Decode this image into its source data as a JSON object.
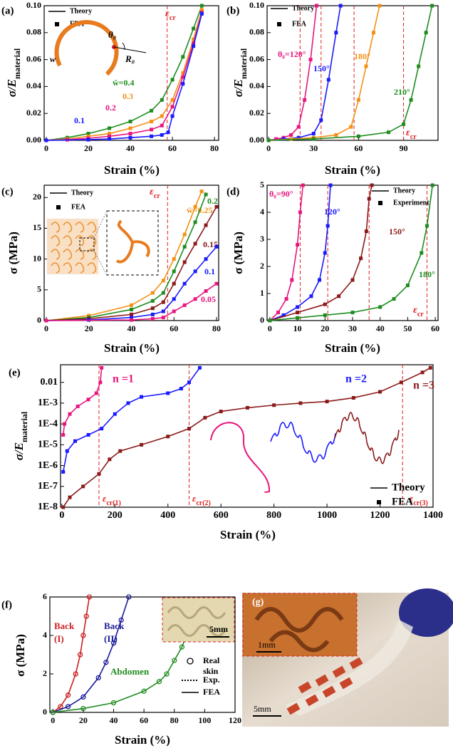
{
  "chart_data": [
    {
      "type": "line",
      "panel": "(a)",
      "x_label": "Strain (%)",
      "y_label": {
        "main": "σ/E",
        "sub": "material"
      },
      "xlim": [
        -1,
        82
      ],
      "ylim": [
        0,
        0.1
      ],
      "xticks": [
        0,
        20,
        40,
        60,
        80
      ],
      "yticks": [
        {
          "value": 0,
          "label": "0.00"
        },
        {
          "value": 0.02,
          "label": "0.02"
        },
        {
          "value": 0.04,
          "label": "0.04"
        },
        {
          "value": 0.06,
          "label": "0.06"
        },
        {
          "value": 0.08,
          "label": "0.08"
        },
        {
          "value": 0.1,
          "label": "0.10"
        }
      ],
      "marker": "square",
      "legend": [
        {
          "label": "Theory",
          "style": "line"
        },
        {
          "label": "FEA",
          "style": "square"
        }
      ],
      "critical_x": [
        57.5
      ],
      "critical_labels": [
        {
          "symbol": "ε",
          "sub": "cr"
        }
      ],
      "inset_labels": [
        "w",
        "θ₀",
        "R₀"
      ],
      "series": [
        {
          "name": "w̄=0.4",
          "color": "#1e8c1e",
          "x": [
            0,
            10,
            20,
            30,
            40,
            50,
            55,
            60,
            65,
            70,
            74
          ],
          "values": [
            0,
            0.002,
            0.005,
            0.009,
            0.014,
            0.022,
            0.03,
            0.045,
            0.062,
            0.083,
            0.1
          ]
        },
        {
          "name": "0.3",
          "color": "#f39016",
          "x": [
            0,
            10,
            20,
            30,
            40,
            50,
            55,
            60,
            65,
            70,
            74
          ],
          "values": [
            0,
            0.001,
            0.003,
            0.005,
            0.009,
            0.014,
            0.018,
            0.03,
            0.05,
            0.075,
            0.097
          ]
        },
        {
          "name": "0.2",
          "color": "#e8167f",
          "x": [
            0,
            10,
            20,
            30,
            40,
            50,
            55,
            60,
            65,
            70,
            74
          ],
          "values": [
            0,
            0.0005,
            0.0015,
            0.003,
            0.005,
            0.008,
            0.011,
            0.025,
            0.047,
            0.072,
            0.095
          ]
        },
        {
          "name": "0.1",
          "color": "#1a1aff",
          "x": [
            0,
            20,
            30,
            40,
            50,
            55,
            58,
            60,
            65,
            70,
            74
          ],
          "values": [
            0,
            0.0005,
            0.001,
            0.002,
            0.003,
            0.004,
            0.006,
            0.018,
            0.042,
            0.07,
            0.094
          ]
        }
      ]
    },
    {
      "type": "line",
      "panel": "(b)",
      "x_label": "Strain (%)",
      "y_label": {
        "main": "σ/E",
        "sub": "material"
      },
      "xlim": [
        -1,
        113
      ],
      "ylim": [
        0,
        0.1
      ],
      "xticks": [
        0,
        30,
        60,
        90
      ],
      "yticks": [
        {
          "value": 0,
          "label": "0.00"
        },
        {
          "value": 0.02,
          "label": "0.02"
        },
        {
          "value": 0.04,
          "label": "0.04"
        },
        {
          "value": 0.06,
          "label": "0.06"
        },
        {
          "value": 0.08,
          "label": "0.08"
        },
        {
          "value": 0.1,
          "label": "0.10"
        }
      ],
      "marker": "square",
      "legend": [
        {
          "label": "Theory",
          "style": "line"
        },
        {
          "label": "FEA",
          "style": "square"
        }
      ],
      "critical_x": [
        21,
        35,
        57,
        90
      ],
      "critical_labels": [
        {
          "symbol": "ε",
          "sub": "cr"
        }
      ],
      "series": [
        {
          "name": "θ₀=120°",
          "color": "#e8167f",
          "x": [
            0,
            5,
            10,
            15,
            20,
            24,
            28,
            32
          ],
          "values": [
            0,
            0.001,
            0.002,
            0.004,
            0.01,
            0.03,
            0.06,
            0.1
          ]
        },
        {
          "name": "150°",
          "color": "#1a1aff",
          "x": [
            0,
            10,
            20,
            30,
            35,
            40,
            45,
            48
          ],
          "values": [
            0,
            0.001,
            0.002,
            0.005,
            0.015,
            0.045,
            0.08,
            0.1
          ]
        },
        {
          "name": "180°",
          "color": "#f39016",
          "x": [
            0,
            15,
            30,
            45,
            55,
            60,
            65,
            70,
            74
          ],
          "values": [
            0,
            0.001,
            0.002,
            0.004,
            0.01,
            0.03,
            0.055,
            0.08,
            0.1
          ]
        },
        {
          "name": "210°",
          "color": "#1e8c1e",
          "x": [
            0,
            30,
            60,
            80,
            90,
            95,
            100,
            105,
            109
          ],
          "values": [
            0,
            0.001,
            0.003,
            0.006,
            0.012,
            0.03,
            0.055,
            0.08,
            0.1
          ]
        }
      ]
    },
    {
      "type": "line",
      "panel": "(c)",
      "x_label": "Strain (%)",
      "y_label": "σ (MPa)",
      "xlim": [
        -1,
        81
      ],
      "ylim": [
        0,
        22
      ],
      "xticks": [
        0,
        20,
        40,
        60,
        80
      ],
      "yticks": [
        0,
        5,
        10,
        15,
        20
      ],
      "marker": "square",
      "legend": [
        {
          "label": "Theory",
          "style": "line"
        },
        {
          "label": "FEA",
          "style": "square"
        }
      ],
      "critical_x": [
        57
      ],
      "critical_labels": [
        {
          "symbol": "ε",
          "sub": "cr"
        }
      ],
      "series": [
        {
          "name": "w̄=0.25",
          "color": "#f39016",
          "x": [
            0,
            20,
            40,
            50,
            55,
            60,
            65,
            70,
            73
          ],
          "values": [
            0,
            0.8,
            2.5,
            4.5,
            6.5,
            10,
            14,
            18.5,
            21
          ]
        },
        {
          "name": "0.2",
          "color": "#1e8c1e",
          "x": [
            0,
            20,
            40,
            50,
            55,
            60,
            65,
            70,
            75
          ],
          "values": [
            0,
            0.5,
            1.8,
            3.2,
            4.5,
            8,
            12,
            16,
            20.5
          ]
        },
        {
          "name": "0.15",
          "color": "#8b1a1a",
          "x": [
            0,
            20,
            40,
            50,
            55,
            60,
            65,
            70,
            75,
            80
          ],
          "values": [
            0,
            0.3,
            1,
            2,
            3,
            6,
            9.5,
            12.5,
            15.5,
            18.5
          ]
        },
        {
          "name": "0.1",
          "color": "#1a1aff",
          "x": [
            0,
            20,
            40,
            50,
            55,
            60,
            65,
            70,
            75,
            80
          ],
          "values": [
            0,
            0.1,
            0.5,
            1,
            1.5,
            3.5,
            6,
            8,
            10,
            12
          ]
        },
        {
          "name": "0.05",
          "color": "#e8167f",
          "x": [
            0,
            40,
            50,
            55,
            60,
            65,
            70,
            75,
            80
          ],
          "values": [
            0,
            0.1,
            0.3,
            0.5,
            1.5,
            2.5,
            3.5,
            4.8,
            6
          ]
        }
      ]
    },
    {
      "type": "line",
      "panel": "(d)",
      "x_label": "Strain (%)",
      "y_label": "σ (MPa)",
      "xlim": [
        -1,
        61
      ],
      "ylim": [
        0,
        5
      ],
      "xticks": [
        0,
        10,
        20,
        30,
        40,
        50,
        60
      ],
      "yticks": [
        0,
        1,
        2,
        3,
        4,
        5
      ],
      "marker": "square",
      "legend": [
        {
          "label": "Theory",
          "style": "line"
        },
        {
          "label": "Experiment",
          "style": "square"
        }
      ],
      "critical_x": [
        11,
        21,
        36,
        57
      ],
      "critical_labels": [
        {
          "symbol": "ε",
          "sub": "cr"
        }
      ],
      "series": [
        {
          "name": "θ₀=90°",
          "color": "#e8167f",
          "x": [
            0,
            3,
            6,
            8,
            10,
            11,
            12
          ],
          "values": [
            0,
            0.3,
            0.8,
            1.5,
            2.8,
            4,
            5
          ]
        },
        {
          "name": "120°",
          "color": "#1a1aff",
          "x": [
            0,
            5,
            10,
            15,
            18,
            20,
            21,
            22
          ],
          "values": [
            0,
            0.2,
            0.5,
            0.9,
            1.5,
            2.5,
            3.5,
            5
          ]
        },
        {
          "name": "150°",
          "color": "#8b1a1a",
          "x": [
            0,
            10,
            20,
            25,
            30,
            33,
            35,
            36,
            37
          ],
          "values": [
            0,
            0.3,
            0.6,
            0.9,
            1.5,
            2.3,
            3.3,
            4.5,
            5
          ]
        },
        {
          "name": "180°",
          "color": "#1e8c1e",
          "x": [
            0,
            10,
            20,
            30,
            40,
            45,
            50,
            55,
            57,
            59
          ],
          "values": [
            0,
            0.1,
            0.2,
            0.3,
            0.5,
            0.8,
            1.3,
            2.5,
            3.5,
            5
          ]
        }
      ]
    },
    {
      "type": "line",
      "panel": "(e)",
      "x_label": "Strain (%)",
      "y_label": {
        "main": "σ/E",
        "sub": "material"
      },
      "xlim": [
        -5,
        1400
      ],
      "ylim": [
        1e-08,
        0.07
      ],
      "log_y": true,
      "xticks": [
        0,
        200,
        400,
        600,
        800,
        1000,
        1200,
        1400
      ],
      "yticks": [
        {
          "value": 1e-08,
          "label": "1E-8"
        },
        {
          "value": 1e-07,
          "label": "1E-7"
        },
        {
          "value": 1e-06,
          "label": "1E-6"
        },
        {
          "value": 1e-05,
          "label": "1E-5"
        },
        {
          "value": 0.0001,
          "label": "1E-4"
        },
        {
          "value": 0.001,
          "label": "1E-3"
        },
        0.01
      ],
      "marker": "square",
      "legend": [
        {
          "label": "Theory",
          "style": "line"
        },
        {
          "label": "FEA",
          "style": "square"
        }
      ],
      "critical_x": [
        140,
        480,
        1285
      ],
      "critical_labels": [
        {
          "symbol": "ε",
          "sub": "cr(1)"
        },
        {
          "symbol": "ε",
          "sub": "cr(2)"
        },
        {
          "symbol": "ε",
          "sub": "cr(3)"
        }
      ],
      "series": [
        {
          "name": "n =1",
          "color": "#e8167f",
          "x": [
            5,
            10,
            30,
            60,
            100,
            130,
            145,
            150
          ],
          "values": [
            3e-05,
            0.0001,
            0.0003,
            0.0007,
            0.0015,
            0.003,
            0.01,
            0.05
          ]
        },
        {
          "name": "n =2",
          "color": "#1a1aff",
          "x": [
            5,
            20,
            50,
            100,
            150,
            200,
            250,
            300,
            400,
            450,
            480,
            520
          ],
          "values": [
            5e-07,
            5e-06,
            1.5e-05,
            3e-05,
            6e-05,
            0.0003,
            0.001,
            0.002,
            0.003,
            0.005,
            0.01,
            0.05
          ]
        },
        {
          "name": "n =3",
          "color": "#8b1a1a",
          "x": [
            5,
            30,
            80,
            140,
            180,
            220,
            300,
            400,
            480,
            540,
            600,
            700,
            800,
            900,
            1000,
            1100,
            1200,
            1280,
            1360,
            1390
          ],
          "values": [
            1e-08,
            3e-08,
            1e-07,
            4e-07,
            2e-06,
            5e-06,
            1e-05,
            2.5e-05,
            6e-05,
            0.0002,
            0.0004,
            0.0006,
            0.0008,
            0.001,
            0.0012,
            0.0018,
            0.0035,
            0.01,
            0.03,
            0.05
          ]
        }
      ]
    },
    {
      "type": "line",
      "panel": "(f)",
      "x_label": "Strain (%)",
      "y_label": "σ (MPa)",
      "xlim": [
        -2,
        120
      ],
      "ylim": [
        0,
        6
      ],
      "xticks": [
        0,
        20,
        40,
        60,
        80,
        100,
        120
      ],
      "yticks": [
        0,
        2,
        4,
        6
      ],
      "marker": "circle",
      "legend": [
        {
          "label": [
            "Real",
            "skin"
          ],
          "style": "circle"
        },
        {
          "label": "Exp.",
          "style": "dotted"
        },
        {
          "label": "FEA",
          "style": "line"
        }
      ],
      "inset_scale": "5mm",
      "series": [
        {
          "label": [
            "Back",
            "(I)"
          ],
          "color": "#cc1f1f",
          "x": [
            0,
            5,
            10,
            15,
            18,
            20,
            22,
            24
          ],
          "values": [
            0,
            0.3,
            0.9,
            2,
            3,
            4,
            5,
            6
          ]
        },
        {
          "label": [
            "Back",
            "(II)"
          ],
          "color": "#1a1a99",
          "x": [
            0,
            10,
            20,
            30,
            35,
            40,
            45,
            50
          ],
          "values": [
            0,
            0.3,
            0.8,
            1.8,
            2.6,
            3.6,
            4.8,
            6
          ]
        },
        {
          "label": [
            "Abdomen"
          ],
          "color": "#1e8c1e",
          "x": [
            0,
            20,
            40,
            60,
            70,
            75,
            80,
            85,
            88
          ],
          "values": [
            0,
            0.2,
            0.5,
            1.1,
            1.6,
            2,
            2.7,
            3.4,
            4
          ]
        }
      ]
    }
  ],
  "photo": {
    "tag": "(g)",
    "scales": [
      "1mm",
      "5mm"
    ]
  }
}
